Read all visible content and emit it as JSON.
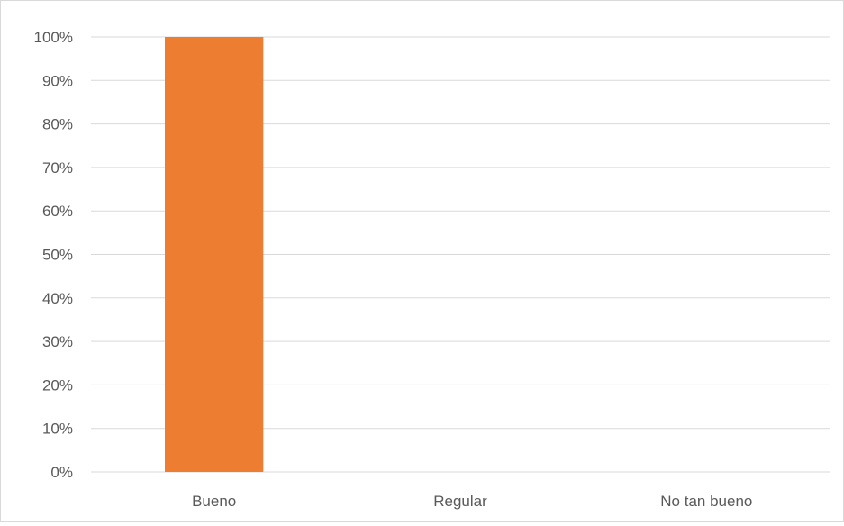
{
  "chart_data": {
    "type": "bar",
    "categories": [
      "Bueno",
      "Regular",
      "No tan bueno"
    ],
    "values": [
      100,
      0,
      0
    ],
    "ylim": [
      0,
      100
    ],
    "yticks": [
      0,
      10,
      20,
      30,
      40,
      50,
      60,
      70,
      80,
      90,
      100
    ],
    "ytick_labels": [
      "0%",
      "10%",
      "20%",
      "30%",
      "40%",
      "50%",
      "60%",
      "70%",
      "80%",
      "90%",
      "100%"
    ],
    "grid": true,
    "bar_color": "#ed7d31",
    "grid_color": "#d9d9d9",
    "title": "",
    "xlabel": "",
    "ylabel": ""
  }
}
